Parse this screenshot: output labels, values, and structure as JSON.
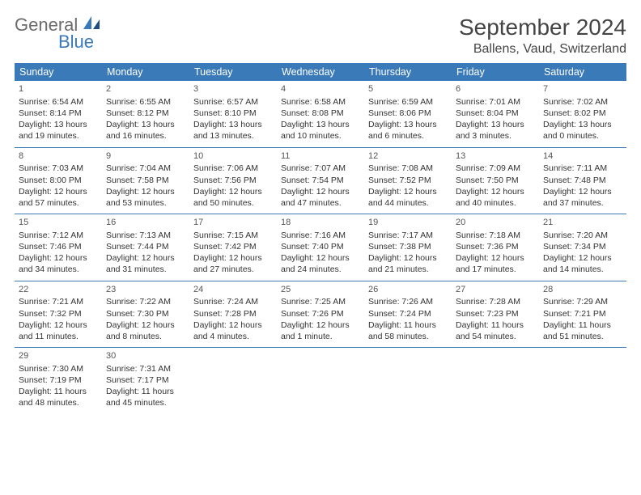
{
  "brand": {
    "part1": "General",
    "part2": "Blue",
    "color_general": "#6b6b6b",
    "color_blue": "#3a7ab8"
  },
  "title": "September 2024",
  "location": "Ballens, Vaud, Switzerland",
  "colors": {
    "header_bg": "#3a7ab8",
    "header_text": "#ffffff",
    "cell_text": "#333333",
    "border": "#3a7ab8",
    "background": "#ffffff"
  },
  "typography": {
    "title_fontsize": 28,
    "location_fontsize": 16,
    "day_header_fontsize": 12.5,
    "cell_fontsize": 10.5
  },
  "day_headers": [
    "Sunday",
    "Monday",
    "Tuesday",
    "Wednesday",
    "Thursday",
    "Friday",
    "Saturday"
  ],
  "weeks": [
    [
      {
        "n": "1",
        "sunrise": "Sunrise: 6:54 AM",
        "sunset": "Sunset: 8:14 PM",
        "daylight1": "Daylight: 13 hours",
        "daylight2": "and 19 minutes."
      },
      {
        "n": "2",
        "sunrise": "Sunrise: 6:55 AM",
        "sunset": "Sunset: 8:12 PM",
        "daylight1": "Daylight: 13 hours",
        "daylight2": "and 16 minutes."
      },
      {
        "n": "3",
        "sunrise": "Sunrise: 6:57 AM",
        "sunset": "Sunset: 8:10 PM",
        "daylight1": "Daylight: 13 hours",
        "daylight2": "and 13 minutes."
      },
      {
        "n": "4",
        "sunrise": "Sunrise: 6:58 AM",
        "sunset": "Sunset: 8:08 PM",
        "daylight1": "Daylight: 13 hours",
        "daylight2": "and 10 minutes."
      },
      {
        "n": "5",
        "sunrise": "Sunrise: 6:59 AM",
        "sunset": "Sunset: 8:06 PM",
        "daylight1": "Daylight: 13 hours",
        "daylight2": "and 6 minutes."
      },
      {
        "n": "6",
        "sunrise": "Sunrise: 7:01 AM",
        "sunset": "Sunset: 8:04 PM",
        "daylight1": "Daylight: 13 hours",
        "daylight2": "and 3 minutes."
      },
      {
        "n": "7",
        "sunrise": "Sunrise: 7:02 AM",
        "sunset": "Sunset: 8:02 PM",
        "daylight1": "Daylight: 13 hours",
        "daylight2": "and 0 minutes."
      }
    ],
    [
      {
        "n": "8",
        "sunrise": "Sunrise: 7:03 AM",
        "sunset": "Sunset: 8:00 PM",
        "daylight1": "Daylight: 12 hours",
        "daylight2": "and 57 minutes."
      },
      {
        "n": "9",
        "sunrise": "Sunrise: 7:04 AM",
        "sunset": "Sunset: 7:58 PM",
        "daylight1": "Daylight: 12 hours",
        "daylight2": "and 53 minutes."
      },
      {
        "n": "10",
        "sunrise": "Sunrise: 7:06 AM",
        "sunset": "Sunset: 7:56 PM",
        "daylight1": "Daylight: 12 hours",
        "daylight2": "and 50 minutes."
      },
      {
        "n": "11",
        "sunrise": "Sunrise: 7:07 AM",
        "sunset": "Sunset: 7:54 PM",
        "daylight1": "Daylight: 12 hours",
        "daylight2": "and 47 minutes."
      },
      {
        "n": "12",
        "sunrise": "Sunrise: 7:08 AM",
        "sunset": "Sunset: 7:52 PM",
        "daylight1": "Daylight: 12 hours",
        "daylight2": "and 44 minutes."
      },
      {
        "n": "13",
        "sunrise": "Sunrise: 7:09 AM",
        "sunset": "Sunset: 7:50 PM",
        "daylight1": "Daylight: 12 hours",
        "daylight2": "and 40 minutes."
      },
      {
        "n": "14",
        "sunrise": "Sunrise: 7:11 AM",
        "sunset": "Sunset: 7:48 PM",
        "daylight1": "Daylight: 12 hours",
        "daylight2": "and 37 minutes."
      }
    ],
    [
      {
        "n": "15",
        "sunrise": "Sunrise: 7:12 AM",
        "sunset": "Sunset: 7:46 PM",
        "daylight1": "Daylight: 12 hours",
        "daylight2": "and 34 minutes."
      },
      {
        "n": "16",
        "sunrise": "Sunrise: 7:13 AM",
        "sunset": "Sunset: 7:44 PM",
        "daylight1": "Daylight: 12 hours",
        "daylight2": "and 31 minutes."
      },
      {
        "n": "17",
        "sunrise": "Sunrise: 7:15 AM",
        "sunset": "Sunset: 7:42 PM",
        "daylight1": "Daylight: 12 hours",
        "daylight2": "and 27 minutes."
      },
      {
        "n": "18",
        "sunrise": "Sunrise: 7:16 AM",
        "sunset": "Sunset: 7:40 PM",
        "daylight1": "Daylight: 12 hours",
        "daylight2": "and 24 minutes."
      },
      {
        "n": "19",
        "sunrise": "Sunrise: 7:17 AM",
        "sunset": "Sunset: 7:38 PM",
        "daylight1": "Daylight: 12 hours",
        "daylight2": "and 21 minutes."
      },
      {
        "n": "20",
        "sunrise": "Sunrise: 7:18 AM",
        "sunset": "Sunset: 7:36 PM",
        "daylight1": "Daylight: 12 hours",
        "daylight2": "and 17 minutes."
      },
      {
        "n": "21",
        "sunrise": "Sunrise: 7:20 AM",
        "sunset": "Sunset: 7:34 PM",
        "daylight1": "Daylight: 12 hours",
        "daylight2": "and 14 minutes."
      }
    ],
    [
      {
        "n": "22",
        "sunrise": "Sunrise: 7:21 AM",
        "sunset": "Sunset: 7:32 PM",
        "daylight1": "Daylight: 12 hours",
        "daylight2": "and 11 minutes."
      },
      {
        "n": "23",
        "sunrise": "Sunrise: 7:22 AM",
        "sunset": "Sunset: 7:30 PM",
        "daylight1": "Daylight: 12 hours",
        "daylight2": "and 8 minutes."
      },
      {
        "n": "24",
        "sunrise": "Sunrise: 7:24 AM",
        "sunset": "Sunset: 7:28 PM",
        "daylight1": "Daylight: 12 hours",
        "daylight2": "and 4 minutes."
      },
      {
        "n": "25",
        "sunrise": "Sunrise: 7:25 AM",
        "sunset": "Sunset: 7:26 PM",
        "daylight1": "Daylight: 12 hours",
        "daylight2": "and 1 minute."
      },
      {
        "n": "26",
        "sunrise": "Sunrise: 7:26 AM",
        "sunset": "Sunset: 7:24 PM",
        "daylight1": "Daylight: 11 hours",
        "daylight2": "and 58 minutes."
      },
      {
        "n": "27",
        "sunrise": "Sunrise: 7:28 AM",
        "sunset": "Sunset: 7:23 PM",
        "daylight1": "Daylight: 11 hours",
        "daylight2": "and 54 minutes."
      },
      {
        "n": "28",
        "sunrise": "Sunrise: 7:29 AM",
        "sunset": "Sunset: 7:21 PM",
        "daylight1": "Daylight: 11 hours",
        "daylight2": "and 51 minutes."
      }
    ],
    [
      {
        "n": "29",
        "sunrise": "Sunrise: 7:30 AM",
        "sunset": "Sunset: 7:19 PM",
        "daylight1": "Daylight: 11 hours",
        "daylight2": "and 48 minutes."
      },
      {
        "n": "30",
        "sunrise": "Sunrise: 7:31 AM",
        "sunset": "Sunset: 7:17 PM",
        "daylight1": "Daylight: 11 hours",
        "daylight2": "and 45 minutes."
      },
      null,
      null,
      null,
      null,
      null
    ]
  ]
}
